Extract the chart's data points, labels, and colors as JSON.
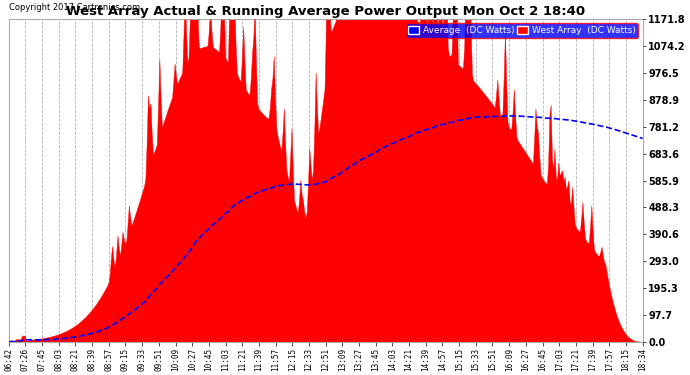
{
  "title": "West Array Actual & Running Average Power Output Mon Oct 2 18:40",
  "copyright": "Copyright 2017 Cartronics.com",
  "ylabel_right_ticks": [
    0.0,
    97.7,
    195.3,
    293.0,
    390.6,
    488.3,
    585.9,
    683.6,
    781.2,
    878.9,
    976.5,
    1074.2,
    1171.8
  ],
  "ymax": 1171.8,
  "ymin": 0.0,
  "legend_labels": [
    "Average  (DC Watts)",
    "West Array  (DC Watts)"
  ],
  "bg_color": "#ffffff",
  "plot_bg_color": "#ffffff",
  "grid_color": "#aaaaaa",
  "bar_color": "#ff0000",
  "avg_color": "#0000ff",
  "x_times": [
    "06:42",
    "07:26",
    "07:45",
    "08:03",
    "08:21",
    "08:39",
    "08:57",
    "09:15",
    "09:33",
    "09:51",
    "10:09",
    "10:27",
    "10:45",
    "11:03",
    "11:21",
    "11:39",
    "11:57",
    "12:15",
    "12:33",
    "12:51",
    "13:09",
    "13:27",
    "13:45",
    "14:03",
    "14:21",
    "14:39",
    "14:57",
    "15:15",
    "15:33",
    "15:51",
    "16:09",
    "16:27",
    "16:45",
    "17:03",
    "17:21",
    "17:39",
    "17:57",
    "18:15",
    "18:34"
  ]
}
